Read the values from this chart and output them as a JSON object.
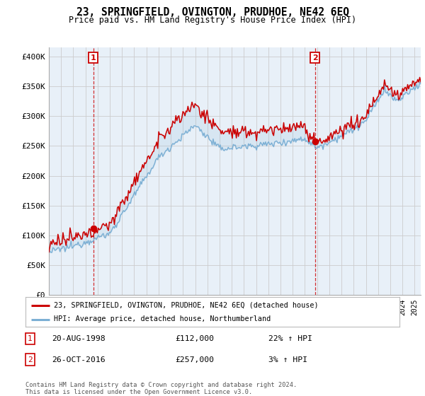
{
  "title": "23, SPRINGFIELD, OVINGTON, PRUDHOE, NE42 6EQ",
  "subtitle": "Price paid vs. HM Land Registry's House Price Index (HPI)",
  "ylabel_ticks": [
    "£0",
    "£50K",
    "£100K",
    "£150K",
    "£200K",
    "£250K",
    "£300K",
    "£350K",
    "£400K"
  ],
  "ytick_vals": [
    0,
    50000,
    100000,
    150000,
    200000,
    250000,
    300000,
    350000,
    400000
  ],
  "ylim": [
    0,
    415000
  ],
  "xlim_start": 1995.0,
  "xlim_end": 2025.5,
  "sale1_x": 1998.64,
  "sale1_y": 112000,
  "sale2_x": 2016.82,
  "sale2_y": 257000,
  "sale1_date": "20-AUG-1998",
  "sale1_price": "£112,000",
  "sale1_hpi": "22% ↑ HPI",
  "sale2_date": "26-OCT-2016",
  "sale2_price": "£257,000",
  "sale2_hpi": "3% ↑ HPI",
  "legend_line1": "23, SPRINGFIELD, OVINGTON, PRUDHOE, NE42 6EQ (detached house)",
  "legend_line2": "HPI: Average price, detached house, Northumberland",
  "footnote": "Contains HM Land Registry data © Crown copyright and database right 2024.\nThis data is licensed under the Open Government Licence v3.0.",
  "price_color": "#cc0000",
  "hpi_color": "#7bafd4",
  "fill_color": "#ddeeff",
  "background_color": "#ffffff",
  "grid_color": "#cccccc",
  "vline_color": "#cc0000",
  "chart_bg": "#e8f0f8"
}
